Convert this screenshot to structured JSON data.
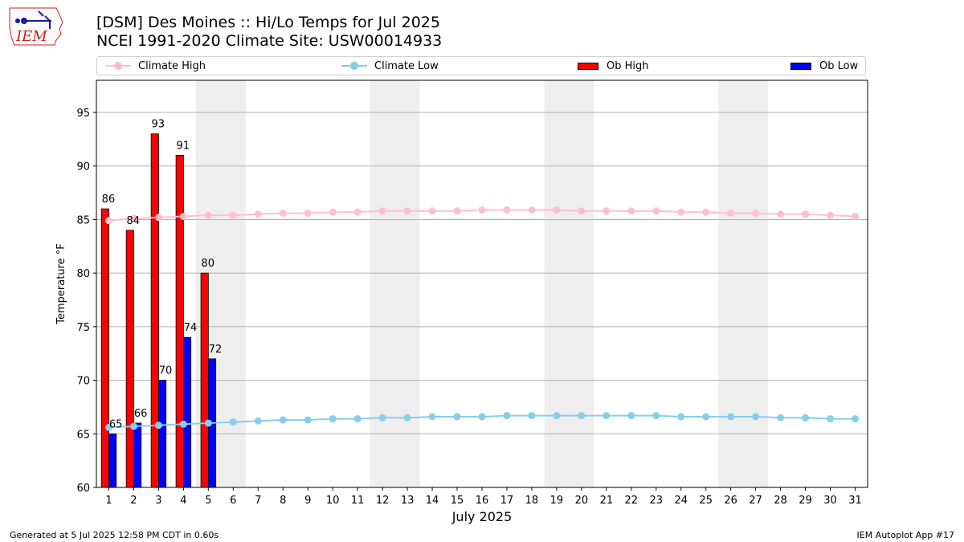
{
  "header": {
    "title_line1": "[DSM] Des Moines :: Hi/Lo Temps for Jul 2025",
    "title_line2": "NCEI 1991-2020 Climate Site: USW00014933"
  },
  "logo": {
    "text": "IEM",
    "color": "#cc2222"
  },
  "legend": {
    "items": [
      {
        "label": "Climate High",
        "kind": "line",
        "color": "#ffc0cb"
      },
      {
        "label": "Climate Low",
        "kind": "line",
        "color": "#87ceeb"
      },
      {
        "label": "Ob High",
        "kind": "bar",
        "color": "#ff0000"
      },
      {
        "label": "Ob Low",
        "kind": "bar",
        "color": "#0000ff"
      }
    ]
  },
  "footer": {
    "left": "Generated at 5 Jul 2025 12:58 PM CDT in 0.60s",
    "right": "IEM Autoplot App #17"
  },
  "chart_data": {
    "type": "bar",
    "xlabel": "July 2025",
    "ylabel": "Temperature °F",
    "ylim": [
      60,
      98
    ],
    "yticks": [
      60,
      65,
      70,
      75,
      80,
      85,
      90,
      95
    ],
    "xlim": [
      0.5,
      31.5
    ],
    "days": [
      1,
      2,
      3,
      4,
      5,
      6,
      7,
      8,
      9,
      10,
      11,
      12,
      13,
      14,
      15,
      16,
      17,
      18,
      19,
      20,
      21,
      22,
      23,
      24,
      25,
      26,
      27,
      28,
      29,
      30,
      31
    ],
    "weekend_shading": [
      [
        5,
        6
      ],
      [
        12,
        13
      ],
      [
        19,
        20
      ],
      [
        26,
        27
      ]
    ],
    "grid": "horizontal",
    "series": [
      {
        "name": "Climate High",
        "type": "line",
        "color": "#ffc0cb",
        "values": [
          84.9,
          85.1,
          85.2,
          85.3,
          85.4,
          85.4,
          85.5,
          85.6,
          85.6,
          85.7,
          85.7,
          85.8,
          85.8,
          85.8,
          85.8,
          85.9,
          85.9,
          85.9,
          85.9,
          85.8,
          85.8,
          85.8,
          85.8,
          85.7,
          85.7,
          85.6,
          85.6,
          85.5,
          85.5,
          85.4,
          85.3
        ]
      },
      {
        "name": "Climate Low",
        "type": "line",
        "color": "#87ceeb",
        "values": [
          65.6,
          65.7,
          65.8,
          65.9,
          66.0,
          66.1,
          66.2,
          66.3,
          66.3,
          66.4,
          66.4,
          66.5,
          66.5,
          66.6,
          66.6,
          66.6,
          66.7,
          66.7,
          66.7,
          66.7,
          66.7,
          66.7,
          66.7,
          66.6,
          66.6,
          66.6,
          66.6,
          66.5,
          66.5,
          66.4,
          66.4
        ]
      },
      {
        "name": "Ob High",
        "type": "bar",
        "color": "#ff0000",
        "values": [
          86,
          84,
          93,
          91,
          80
        ]
      },
      {
        "name": "Ob Low",
        "type": "bar",
        "color": "#0000ff",
        "values": [
          65,
          66,
          70,
          74,
          72
        ]
      }
    ]
  }
}
